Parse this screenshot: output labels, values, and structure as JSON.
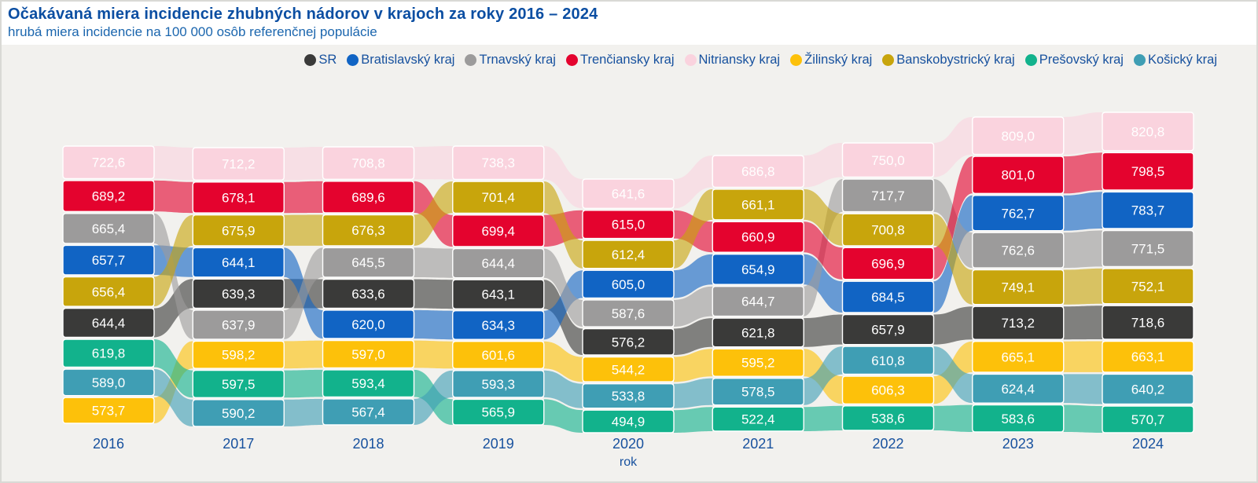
{
  "header": {
    "title": "Očakávaná miera incidencie zhubných nádorov v krajoch za roky 2016 – 2024",
    "subtitle": "hrubá miera incidencie na 100 000 osôb referenčnej populácie"
  },
  "chart_data": {
    "type": "area",
    "subtype": "ribbon-bump-chart",
    "title": "Očakávaná miera incidencie zhubných nádorov v krajoch za roky 2016 – 2024",
    "subtitle": "hrubá miera incidencie na 100 000 osôb referenčnej populácie",
    "x": [
      2016,
      2017,
      2018,
      2019,
      2020,
      2021,
      2022,
      2023,
      2024
    ],
    "xlabel": "rok",
    "ylabel": "",
    "legend_position": "top-right",
    "value_labels_shown": true,
    "value_decimal_separator": ",",
    "ranking": "blocks sorted descending by value within each year column",
    "series": [
      {
        "id": "sr",
        "name": "SR",
        "color": "#3A3A39",
        "values": [
          644.4,
          639.3,
          633.6,
          643.1,
          576.2,
          621.8,
          657.9,
          713.2,
          718.6
        ]
      },
      {
        "id": "bratislavsky-kraj",
        "name": "Bratislavský kraj",
        "color": "#1164C4",
        "values": [
          657.7,
          644.1,
          620.0,
          634.3,
          605.0,
          654.9,
          684.5,
          762.7,
          783.7
        ]
      },
      {
        "id": "trnavsky-kraj",
        "name": "Trnavský kraj",
        "color": "#9C9B9B",
        "values": [
          665.4,
          637.9,
          645.5,
          644.4,
          587.6,
          644.7,
          717.7,
          762.6,
          771.5
        ]
      },
      {
        "id": "trenciansky-kraj",
        "name": "Trenčiansky kraj",
        "color": "#E4032E",
        "values": [
          689.2,
          678.1,
          689.6,
          699.4,
          615.0,
          660.9,
          696.9,
          801.0,
          798.5
        ]
      },
      {
        "id": "nitriansky-kraj",
        "name": "Nitriansky kraj",
        "color": "#FAD3DE",
        "values": [
          722.6,
          712.2,
          708.8,
          738.3,
          641.6,
          686.8,
          750.0,
          809.0,
          820.8
        ]
      },
      {
        "id": "zilinsky-kraj",
        "name": "Žilinský kraj",
        "color": "#FDC10A",
        "values": [
          573.7,
          598.2,
          597.0,
          601.6,
          544.2,
          595.2,
          606.3,
          665.1,
          663.1
        ]
      },
      {
        "id": "banskobystricky-kraj",
        "name": "Banskobystrický kraj",
        "color": "#C8A50C",
        "values": [
          656.4,
          675.9,
          676.3,
          701.4,
          612.4,
          661.1,
          700.8,
          749.1,
          752.1
        ]
      },
      {
        "id": "presovsky-kraj",
        "name": "Prešovský kraj",
        "color": "#12B28C",
        "values": [
          619.8,
          597.5,
          593.4,
          565.9,
          494.9,
          522.4,
          538.6,
          583.6,
          570.7
        ]
      },
      {
        "id": "kosicky-kraj",
        "name": "Košický kraj",
        "color": "#3F9EB4",
        "values": [
          589.0,
          590.2,
          567.4,
          593.3,
          533.8,
          578.5,
          610.8,
          624.4,
          640.2
        ]
      }
    ]
  }
}
